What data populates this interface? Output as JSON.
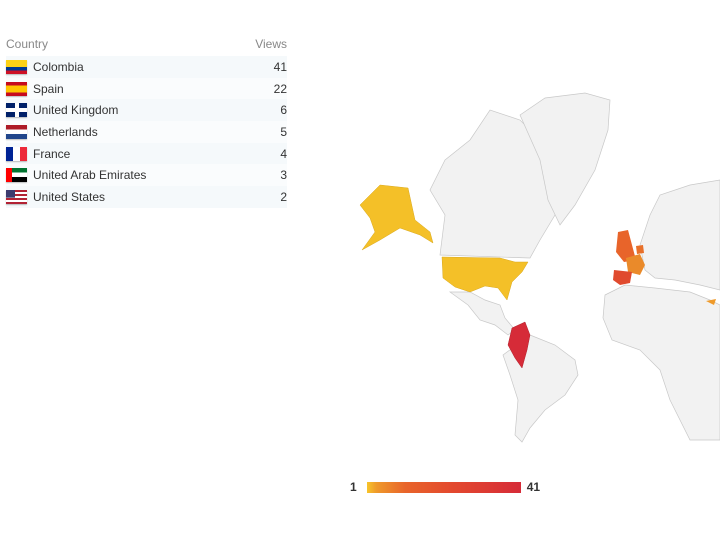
{
  "table": {
    "headers": {
      "country": "Country",
      "views": "Views"
    },
    "rows": [
      {
        "country": "Colombia",
        "views": "41",
        "flag": "colombia-flag-icon"
      },
      {
        "country": "Spain",
        "views": "22",
        "flag": "spain-flag-icon"
      },
      {
        "country": "United Kingdom",
        "views": "6",
        "flag": "uk-flag-icon"
      },
      {
        "country": "Netherlands",
        "views": "5",
        "flag": "netherlands-flag-icon"
      },
      {
        "country": "France",
        "views": "4",
        "flag": "france-flag-icon"
      },
      {
        "country": "United Arab Emirates",
        "views": "3",
        "flag": "uae-flag-icon"
      },
      {
        "country": "United States",
        "views": "2",
        "flag": "us-flag-icon"
      }
    ]
  },
  "legend": {
    "min": "1",
    "max": "41"
  },
  "colors": {
    "low": "#f7c52a",
    "mid": "#e8642a",
    "high": "#d62b38",
    "land": "#f2f2f2",
    "border": "#cccccc"
  }
}
